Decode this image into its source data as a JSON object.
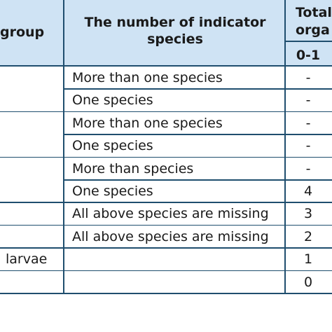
{
  "header": {
    "group_partial": "group",
    "indicator_species": "The number of indicator species",
    "total_partial_line1": "Total",
    "total_partial_line2": "orga",
    "sub_range": "0-1"
  },
  "rows": [
    {
      "group": "",
      "species": "More than one species",
      "value": "-"
    },
    {
      "group": "",
      "species": "One species",
      "value": "-"
    },
    {
      "group": "",
      "species": "More than one species",
      "value": "-"
    },
    {
      "group": "",
      "species": "One species",
      "value": "-"
    },
    {
      "group": "",
      "species": "More than species",
      "value": "-"
    },
    {
      "group": "",
      "species": "One species",
      "value": "4"
    },
    {
      "group": "",
      "species": "All above species are missing",
      "value": "3"
    },
    {
      "group": "",
      "species": "All above species are missing",
      "value": "2"
    },
    {
      "group": "larvae",
      "species": "",
      "value": "1"
    },
    {
      "group": "",
      "species": "",
      "value": "0"
    }
  ]
}
